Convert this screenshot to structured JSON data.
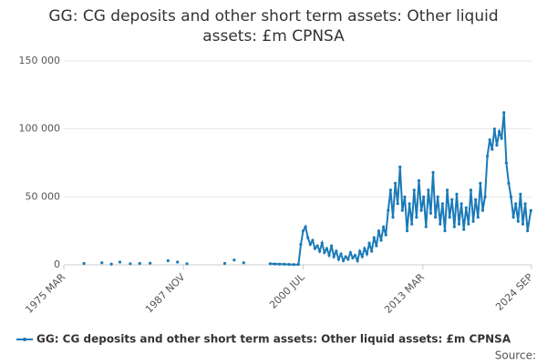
{
  "chart_data": {
    "type": "line",
    "title": [
      "GG: CG deposits and other short term assets: Other liquid",
      "assets: £m CPNSA"
    ],
    "x": [
      1977.3,
      1978.2,
      1979.2,
      1979.7,
      1980.2,
      1980.6,
      1981.1,
      1981.6,
      1982.2,
      1982.7,
      1983.2,
      1983.7,
      1984.3,
      1985.2,
      1986.2,
      1986.7,
      1987.2,
      1987.7,
      1988.2,
      1990.2,
      1992.2,
      1992.7,
      1993.2,
      1993.7,
      1994.2,
      1995.6,
      1997.0,
      1997.5,
      1998.0,
      1998.5,
      1999.0,
      1999.5,
      2000.0,
      2000.25,
      2000.5,
      2000.75,
      2001.0,
      2001.25,
      2001.5,
      2001.75,
      2002.0,
      2002.25,
      2002.5,
      2002.75,
      2003.0,
      2003.25,
      2003.5,
      2003.75,
      2004.0,
      2004.25,
      2004.5,
      2004.75,
      2005.0,
      2005.25,
      2005.5,
      2005.75,
      2006.0,
      2006.25,
      2006.5,
      2006.75,
      2007.0,
      2007.25,
      2007.5,
      2007.75,
      2008.0,
      2008.25,
      2008.5,
      2008.75,
      2009.0,
      2009.25,
      2009.5,
      2009.75,
      2010.0,
      2010.25,
      2010.5,
      2010.75,
      2011.0,
      2011.25,
      2011.5,
      2011.75,
      2012.0,
      2012.25,
      2012.5,
      2012.75,
      2013.0,
      2013.25,
      2013.5,
      2013.75,
      2014.0,
      2014.25,
      2014.5,
      2014.75,
      2015.0,
      2015.25,
      2015.5,
      2015.75,
      2016.0,
      2016.25,
      2016.5,
      2016.75,
      2017.0,
      2017.25,
      2017.5,
      2017.75,
      2018.0,
      2018.25,
      2018.5,
      2018.75,
      2019.0,
      2019.25,
      2019.5,
      2019.75,
      2020.0,
      2020.25,
      2020.5,
      2020.75,
      2021.0,
      2021.25,
      2021.5,
      2021.75,
      2022.0,
      2022.25,
      2022.5,
      2022.75,
      2023.0,
      2023.25,
      2023.5,
      2023.75,
      2024.0,
      2024.25,
      2024.6
    ],
    "series": [
      {
        "name": "GG: CG deposits and other short term assets: Other liquid assets: £m CPNSA",
        "color": "#1a7ab8",
        "values": [
          1000,
          null,
          1500,
          null,
          500,
          null,
          2000,
          null,
          800,
          null,
          1000,
          null,
          1200,
          null,
          3000,
          null,
          2000,
          null,
          800,
          null,
          1000,
          null,
          3500,
          null,
          1500,
          null,
          800,
          600,
          500,
          400,
          300,
          200,
          300,
          15000,
          25000,
          28000,
          20000,
          15000,
          18000,
          12000,
          14000,
          10000,
          16000,
          9000,
          12000,
          7000,
          14000,
          6000,
          10000,
          4000,
          8000,
          3000,
          6000,
          4000,
          9000,
          5000,
          7000,
          3000,
          10000,
          6000,
          12000,
          8000,
          16000,
          10000,
          20000,
          14000,
          25000,
          18000,
          28000,
          22000,
          40000,
          55000,
          35000,
          60000,
          45000,
          72000,
          40000,
          50000,
          25000,
          45000,
          30000,
          55000,
          35000,
          62000,
          40000,
          50000,
          28000,
          55000,
          38000,
          68000,
          35000,
          50000,
          30000,
          45000,
          25000,
          55000,
          35000,
          48000,
          28000,
          52000,
          30000,
          45000,
          26000,
          42000,
          30000,
          55000,
          32000,
          48000,
          35000,
          60000,
          40000,
          50000,
          80000,
          92000,
          85000,
          100000,
          88000,
          98000,
          93000,
          112000,
          75000,
          60000,
          50000,
          35000,
          45000,
          32000,
          52000,
          30000,
          45000,
          25000,
          40000
        ]
      }
    ],
    "xlim": [
      1975.167,
      2024.667
    ],
    "xticks": [
      {
        "value": 1975.167,
        "label": "1975 MAR"
      },
      {
        "value": 1987.833,
        "label": "1987 NOV"
      },
      {
        "value": 2000.5,
        "label": "2000 JUL"
      },
      {
        "value": 2013.167,
        "label": "2013 MAR"
      },
      {
        "value": 2024.667,
        "label": "2024 SEP"
      }
    ],
    "ylim": [
      0,
      150000
    ],
    "yticks": [
      0,
      {
        "value": 50000,
        "label": "50 000"
      },
      {
        "value": 100000,
        "label": "100 000"
      },
      {
        "value": 150000,
        "label": "150 000"
      }
    ],
    "grid": true,
    "legend": "bottom",
    "source": "Source:"
  }
}
